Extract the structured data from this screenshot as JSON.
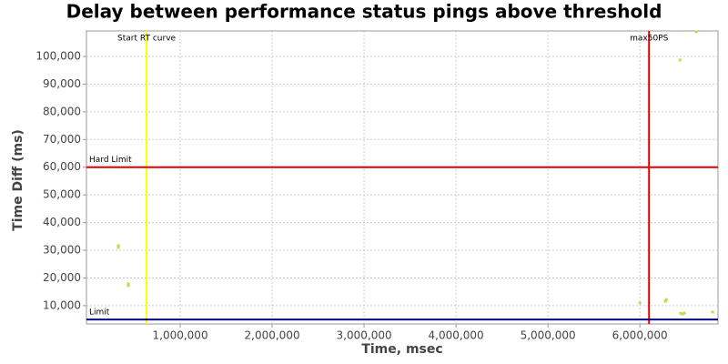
{
  "chart_data": {
    "type": "scatter",
    "title": "Delay between performance status pings above threshold",
    "x_label": "Time, msec",
    "y_label": "Time Diff (ms)",
    "x": [
      327000,
      327000,
      436000,
      436000,
      6000000,
      6277000,
      6290000,
      6436000,
      6614000,
      6445000,
      6465000,
      6485000,
      6792000
    ],
    "values": [
      31700,
      31000,
      17900,
      17300,
      11000,
      11600,
      12200,
      98700,
      108900,
      7200,
      7000,
      7300,
      7700
    ],
    "color": "#b8e04a",
    "xlim": [
      -20000,
      6850000
    ],
    "ylim": [
      3400,
      109200
    ],
    "xticks": [
      {
        "value": 1000000,
        "label": "1,000,000"
      },
      {
        "value": 2000000,
        "label": "2,000,000"
      },
      {
        "value": 3000000,
        "label": "3,000,000"
      },
      {
        "value": 4000000,
        "label": "4,000,000"
      },
      {
        "value": 5000000,
        "label": "5,000,000"
      },
      {
        "value": 6000000,
        "label": "6,000,000"
      }
    ],
    "yticks": [
      {
        "value": 10000,
        "label": "10,000"
      },
      {
        "value": 20000,
        "label": "20,000"
      },
      {
        "value": 30000,
        "label": "30,000"
      },
      {
        "value": 40000,
        "label": "40,000"
      },
      {
        "value": 50000,
        "label": "50,000"
      },
      {
        "value": 60000,
        "label": "60,000"
      },
      {
        "value": 70000,
        "label": "70,000"
      },
      {
        "value": 80000,
        "label": "80,000"
      },
      {
        "value": 90000,
        "label": "90,000"
      },
      {
        "value": 100000,
        "label": "100,000"
      }
    ],
    "grid": true,
    "x_markers": [
      {
        "label": "Start RT curve",
        "value": 634000,
        "color": "#ffff00"
      },
      {
        "label": "max50PS",
        "value": 6100000,
        "color": "#e00000"
      }
    ],
    "y_markers": [
      {
        "label": "Hard Limit",
        "value": 60000,
        "color": "#e00000"
      },
      {
        "label": "Limit",
        "value": 5000,
        "color": "#000080"
      }
    ]
  }
}
